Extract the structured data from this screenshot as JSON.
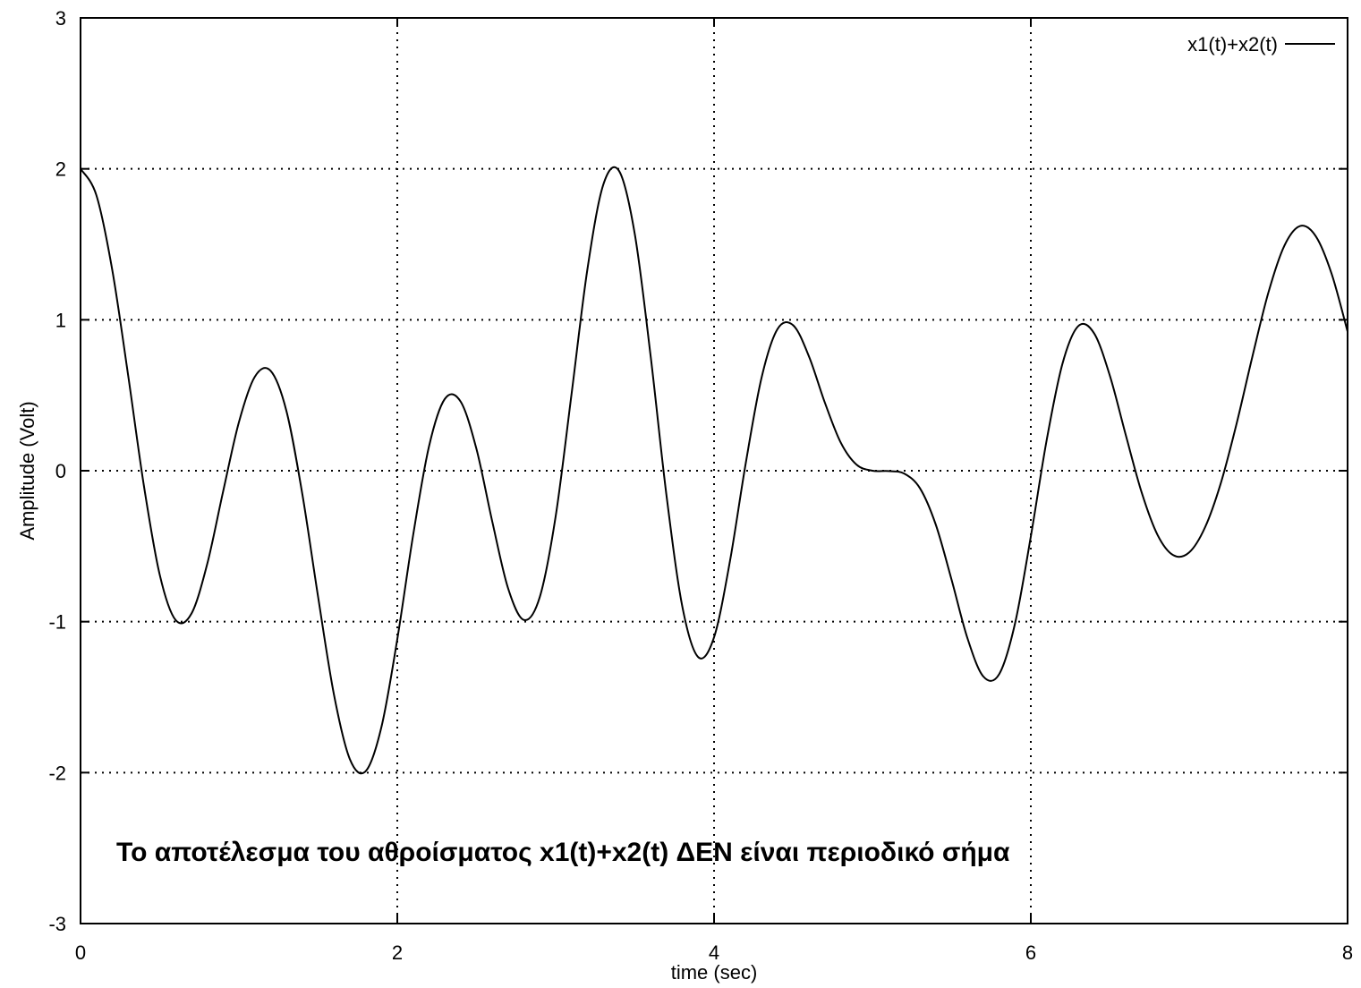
{
  "chart_data": {
    "type": "line",
    "xlabel": "time (sec)",
    "ylabel": "Amplitude (Volt)",
    "xlim": [
      0,
      8
    ],
    "ylim": [
      -3,
      3
    ],
    "xticks": [
      0,
      2,
      4,
      6,
      8
    ],
    "xtick_labels": [
      "0",
      "2",
      "4",
      "6",
      "8"
    ],
    "yticks": [
      -3,
      -2,
      -1,
      0,
      1,
      2,
      3
    ],
    "ytick_labels": [
      "-3",
      "-2",
      "-1",
      "0",
      "1",
      "2",
      "3"
    ],
    "grid": true,
    "legend_position": "top-right",
    "annotation": "Το αποτέλεσμα του αθροίσματος x1(t)+x2(t) ΔΕΝ είναι περιοδικό σήμα",
    "series": [
      {
        "name": "x1(t)+x2(t)",
        "color": "#000000",
        "x": [
          0,
          0.1,
          0.2,
          0.3,
          0.4,
          0.5,
          0.6,
          0.7,
          0.8,
          0.9,
          1.0,
          1.1,
          1.2,
          1.3,
          1.4,
          1.5,
          1.6,
          1.7,
          1.8,
          1.9,
          2.0,
          2.1,
          2.2,
          2.3,
          2.4,
          2.5,
          2.6,
          2.7,
          2.8,
          2.9,
          3.0,
          3.1,
          3.2,
          3.3,
          3.4,
          3.5,
          3.6,
          3.7,
          3.8,
          3.9,
          4.0,
          4.1,
          4.2,
          4.3,
          4.4,
          4.5,
          4.6,
          4.7,
          4.8,
          4.9,
          5.0,
          5.1,
          5.2,
          5.3,
          5.4,
          5.5,
          5.6,
          5.7,
          5.8,
          5.9,
          6.0,
          6.1,
          6.2,
          6.3,
          6.4,
          6.5,
          6.6,
          6.7,
          6.8,
          6.9,
          7.0,
          7.1,
          7.2,
          7.3,
          7.4,
          7.5,
          7.6,
          7.7,
          7.8,
          7.9,
          8.0
        ],
        "y": [
          2.0,
          1.8253,
          1.3321,
          0.6366,
          -0.0988,
          -0.6889,
          -0.9889,
          -0.9472,
          -0.6173,
          -0.139,
          0.3216,
          0.622,
          0.6619,
          0.3957,
          -0.1525,
          -0.8359,
          -1.4823,
          -1.9095,
          -1.9911,
          -1.6974,
          -1.1162,
          -0.4268,
          0.1601,
          0.4758,
          0.4579,
          0.1435,
          -0.3384,
          -0.7804,
          -0.9887,
          -0.8355,
          -0.3016,
          0.5063,
          1.3322,
          1.893,
          1.9866,
          1.5646,
          0.7557,
          -0.1668,
          -0.9015,
          -1.2346,
          -1.1032,
          -0.6016,
          0.0494,
          0.6166,
          0.9376,
          0.9631,
          0.7555,
          0.4501,
          0.1862,
          0.0399,
          0.0,
          -0.0021,
          -0.0188,
          -0.1159,
          -0.3573,
          -0.7233,
          -1.1097,
          -1.363,
          -1.3478,
          -1.0131,
          -0.436,
          0.2023,
          0.7097,
          0.9587,
          0.9098,
          0.6265,
          0.2347,
          -0.1442,
          -0.4248,
          -0.5597,
          -0.5411,
          -0.3751,
          -0.081,
          0.3149,
          0.7606,
          1.1804,
          1.4888,
          1.6211,
          1.5525,
          1.3025,
          0.9219
        ]
      }
    ]
  }
}
